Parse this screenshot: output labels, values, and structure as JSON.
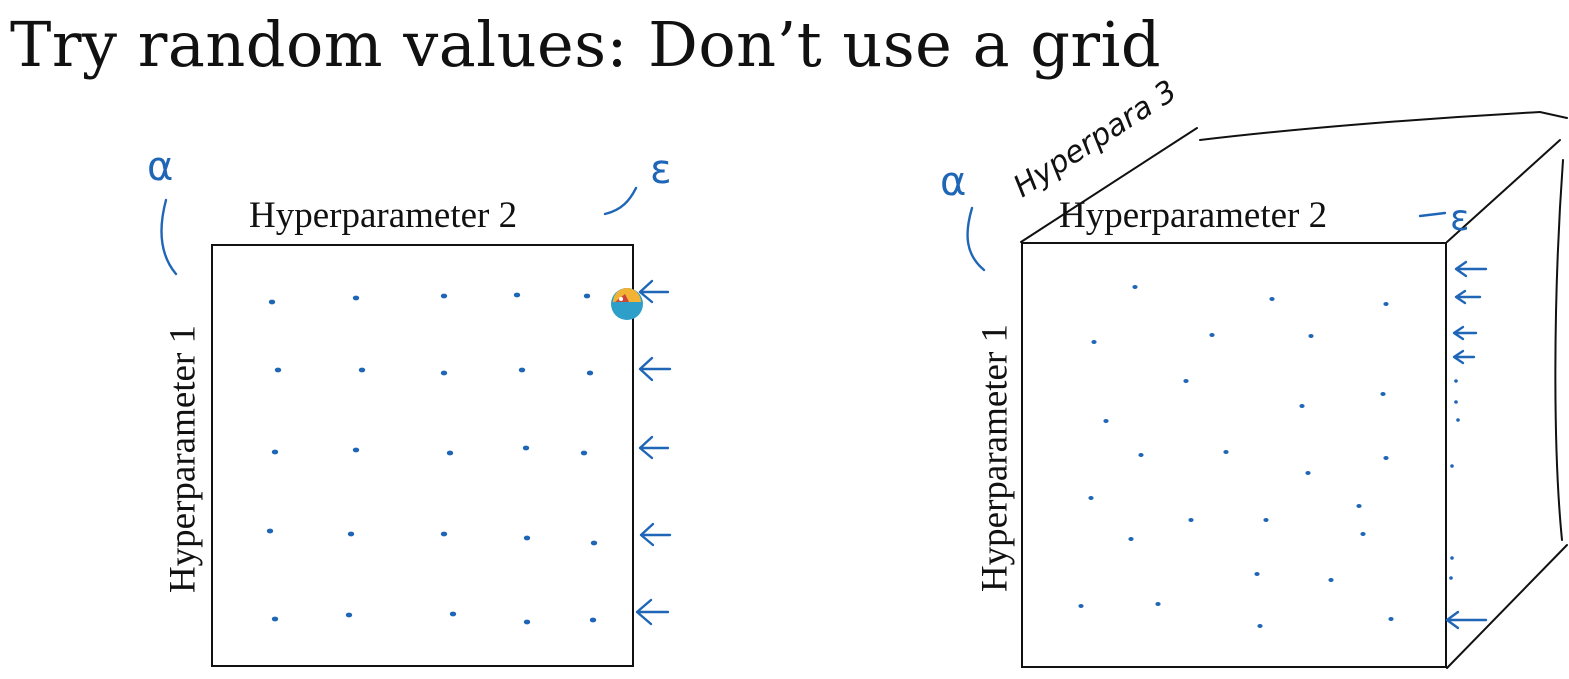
{
  "slide": {
    "title": "Try random values: Don’t use a grid"
  },
  "left_panel": {
    "x_axis_label": "Hyperparameter 2",
    "y_axis_label": "Hyperparameter 1",
    "alpha_annotation": "α",
    "epsilon_annotation": "ε",
    "grid_points_per_side": 5,
    "row_arrow_count": 5
  },
  "right_panel": {
    "x_axis_label": "Hyperparameter 2",
    "y_axis_label": "Hyperparameter 1",
    "depth_annotation": "Hyperpara 3",
    "alpha_annotation": "α",
    "epsilon_annotation": "ε",
    "random_point_count": 25
  },
  "colors": {
    "ink": "#1f66b7",
    "text": "#111111",
    "background": "#ffffff"
  },
  "icons": [
    "pointer-cursor-icon"
  ]
}
